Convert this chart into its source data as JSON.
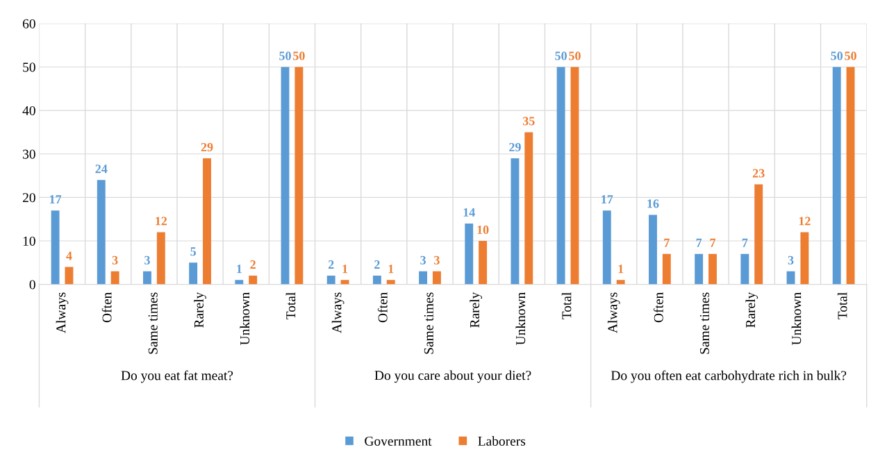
{
  "chart_data": {
    "type": "bar",
    "categories": [
      "Always",
      "Often",
      "Same times",
      "Rarely",
      "Unknown",
      "Total",
      "Always",
      "Often",
      "Same times",
      "Rarely",
      "Unknown",
      "Total",
      "Always",
      "Often",
      "Same times",
      "Rarely",
      "Unknown",
      "Total"
    ],
    "series": [
      {
        "name": "Government",
        "color": "#5b9bd5",
        "values": [
          17,
          24,
          3,
          5,
          1,
          50,
          2,
          2,
          3,
          14,
          29,
          50,
          17,
          16,
          7,
          7,
          3,
          50
        ]
      },
      {
        "name": "Laborers",
        "color": "#ed7d31",
        "values": [
          4,
          3,
          12,
          29,
          2,
          50,
          1,
          1,
          3,
          10,
          35,
          50,
          1,
          7,
          7,
          23,
          12,
          50
        ]
      }
    ],
    "annotations": [
      "Do you eat fat meat?",
      "Do you care about your diet?",
      "Do you often eat carbohydrate rich in bulk?"
    ],
    "ylim": [
      0,
      60
    ],
    "yticks": [
      0,
      10,
      20,
      30,
      40,
      50,
      60
    ],
    "grid": true,
    "legend": "bottom",
    "data_labels": true
  }
}
